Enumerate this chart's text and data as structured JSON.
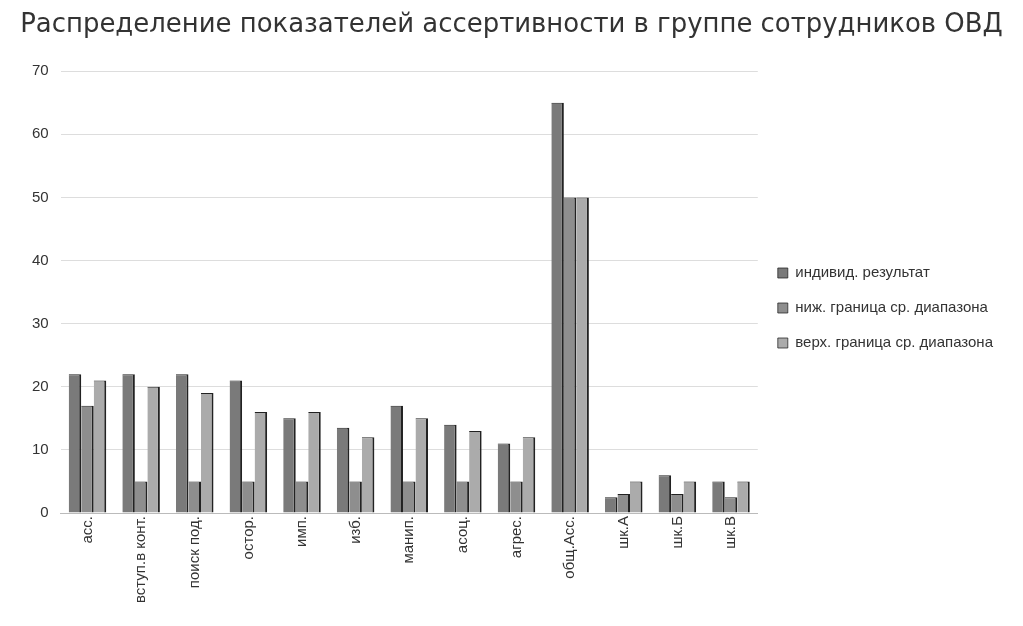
{
  "chart_data": {
    "type": "bar",
    "title": "Распределение показателей ассертивности в группе сотрудников ОВД",
    "categories": [
      "асс.",
      "вступ.в конт.",
      "поиск под.",
      "остор.",
      "имп.",
      "изб.",
      "манип.",
      "асоц.",
      "агрес.",
      "общ.Асс.",
      "шк.А",
      "шк.Б",
      "шк.В"
    ],
    "series": [
      {
        "name": "индивид. результат",
        "color": "#7a7a7a",
        "values": [
          22,
          22,
          22,
          21,
          15,
          13.5,
          17,
          14,
          11,
          65,
          2.5,
          6,
          5
        ]
      },
      {
        "name": "ниж. граница ср. диапазона",
        "color": "#8e8e8e",
        "values": [
          17,
          5,
          5,
          5,
          5,
          5,
          5,
          5,
          5,
          50,
          3,
          3,
          2.5
        ]
      },
      {
        "name": "верх. граница ср. диапазона",
        "color": "#ababab",
        "values": [
          21,
          20,
          19,
          16,
          16,
          12,
          15,
          13,
          12,
          50,
          5,
          5,
          5
        ]
      }
    ],
    "ylim": [
      0,
      70
    ],
    "yticks": [
      0,
      10,
      20,
      30,
      40,
      50,
      60,
      70
    ],
    "grid": "y",
    "legend": "right"
  }
}
